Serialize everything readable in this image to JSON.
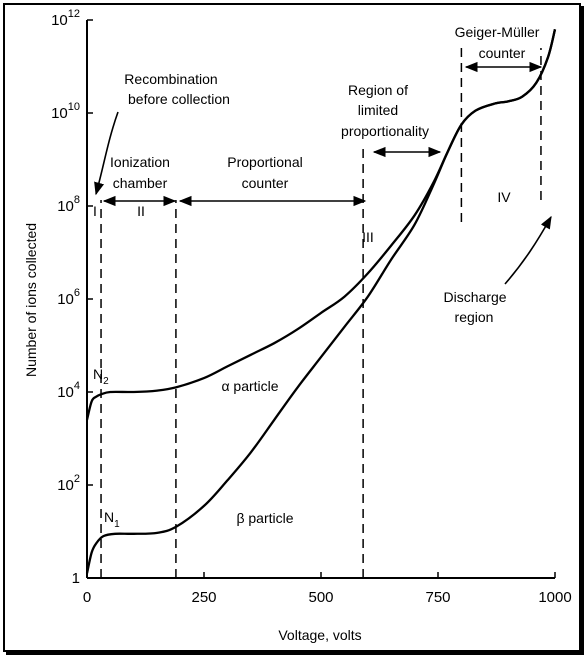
{
  "chart_data": {
    "type": "line",
    "xlabel": "Voltage, volts",
    "ylabel": "Number of ions collected",
    "xlim": [
      0,
      1000
    ],
    "ylim_log10": [
      0,
      12
    ],
    "y_scale": "log",
    "grid": false,
    "x_ticks": [
      {
        "value": 0,
        "label": "0"
      },
      {
        "value": 250,
        "label": "250"
      },
      {
        "value": 500,
        "label": "500"
      },
      {
        "value": 750,
        "label": "750"
      },
      {
        "value": 1000,
        "label": "1000"
      }
    ],
    "y_ticks": [
      {
        "exp": 0,
        "base": "1",
        "sup": ""
      },
      {
        "exp": 2,
        "base": "10",
        "sup": "2"
      },
      {
        "exp": 4,
        "base": "10",
        "sup": "4"
      },
      {
        "exp": 6,
        "base": "10",
        "sup": "6"
      },
      {
        "exp": 8,
        "base": "10",
        "sup": "8"
      },
      {
        "exp": 10,
        "base": "10",
        "sup": "10"
      },
      {
        "exp": 12,
        "base": "10",
        "sup": "12"
      }
    ],
    "series": [
      {
        "name": "α particle",
        "points": [
          [
            0,
            3.4
          ],
          [
            10,
            3.8
          ],
          [
            20,
            3.9
          ],
          [
            30,
            3.95
          ],
          [
            50,
            4.0
          ],
          [
            100,
            4.0
          ],
          [
            150,
            4.03
          ],
          [
            190,
            4.1
          ],
          [
            250,
            4.3
          ],
          [
            300,
            4.55
          ],
          [
            350,
            4.8
          ],
          [
            400,
            5.05
          ],
          [
            450,
            5.35
          ],
          [
            500,
            5.7
          ],
          [
            550,
            6.05
          ],
          [
            600,
            6.55
          ],
          [
            650,
            7.15
          ],
          [
            700,
            7.8
          ],
          [
            740,
            8.5
          ],
          [
            770,
            9.15
          ],
          [
            800,
            9.75
          ],
          [
            830,
            10.05
          ],
          [
            870,
            10.2
          ],
          [
            900,
            10.25
          ],
          [
            930,
            10.35
          ],
          [
            960,
            10.65
          ],
          [
            985,
            11.2
          ],
          [
            1000,
            11.8
          ]
        ]
      },
      {
        "name": "β particle",
        "points": [
          [
            0,
            0.1
          ],
          [
            10,
            0.55
          ],
          [
            20,
            0.75
          ],
          [
            35,
            0.9
          ],
          [
            60,
            0.95
          ],
          [
            100,
            0.95
          ],
          [
            150,
            0.97
          ],
          [
            190,
            1.1
          ],
          [
            250,
            1.55
          ],
          [
            300,
            2.1
          ],
          [
            350,
            2.7
          ],
          [
            400,
            3.4
          ],
          [
            450,
            4.1
          ],
          [
            500,
            4.75
          ],
          [
            550,
            5.4
          ],
          [
            600,
            6.05
          ],
          [
            650,
            6.85
          ],
          [
            700,
            7.6
          ],
          [
            740,
            8.45
          ],
          [
            770,
            9.15
          ],
          [
            800,
            9.75
          ],
          [
            830,
            10.05
          ],
          [
            870,
            10.2
          ],
          [
            900,
            10.25
          ],
          [
            930,
            10.35
          ],
          [
            960,
            10.65
          ],
          [
            985,
            11.2
          ],
          [
            1000,
            11.8
          ]
        ]
      }
    ],
    "boundaries": [
      30,
      190,
      590,
      800,
      970
    ],
    "regions": [
      {
        "label": "Recombination",
        "label2": "before collection"
      },
      {
        "label": "Ionization",
        "label2": "chamber"
      },
      {
        "label": "Proportional",
        "label2": "counter"
      },
      {
        "label": "Region of",
        "label2": "limited",
        "label3": "proportionality"
      },
      {
        "label": "Geiger-Müller",
        "label2": "counter"
      },
      {
        "label": "Discharge",
        "label2": "region"
      }
    ],
    "region_numerals": [
      "I",
      "II",
      "III",
      "IV"
    ],
    "curve_markers": [
      {
        "base": "N",
        "sub": "2"
      },
      {
        "base": "N",
        "sub": "1"
      }
    ]
  }
}
